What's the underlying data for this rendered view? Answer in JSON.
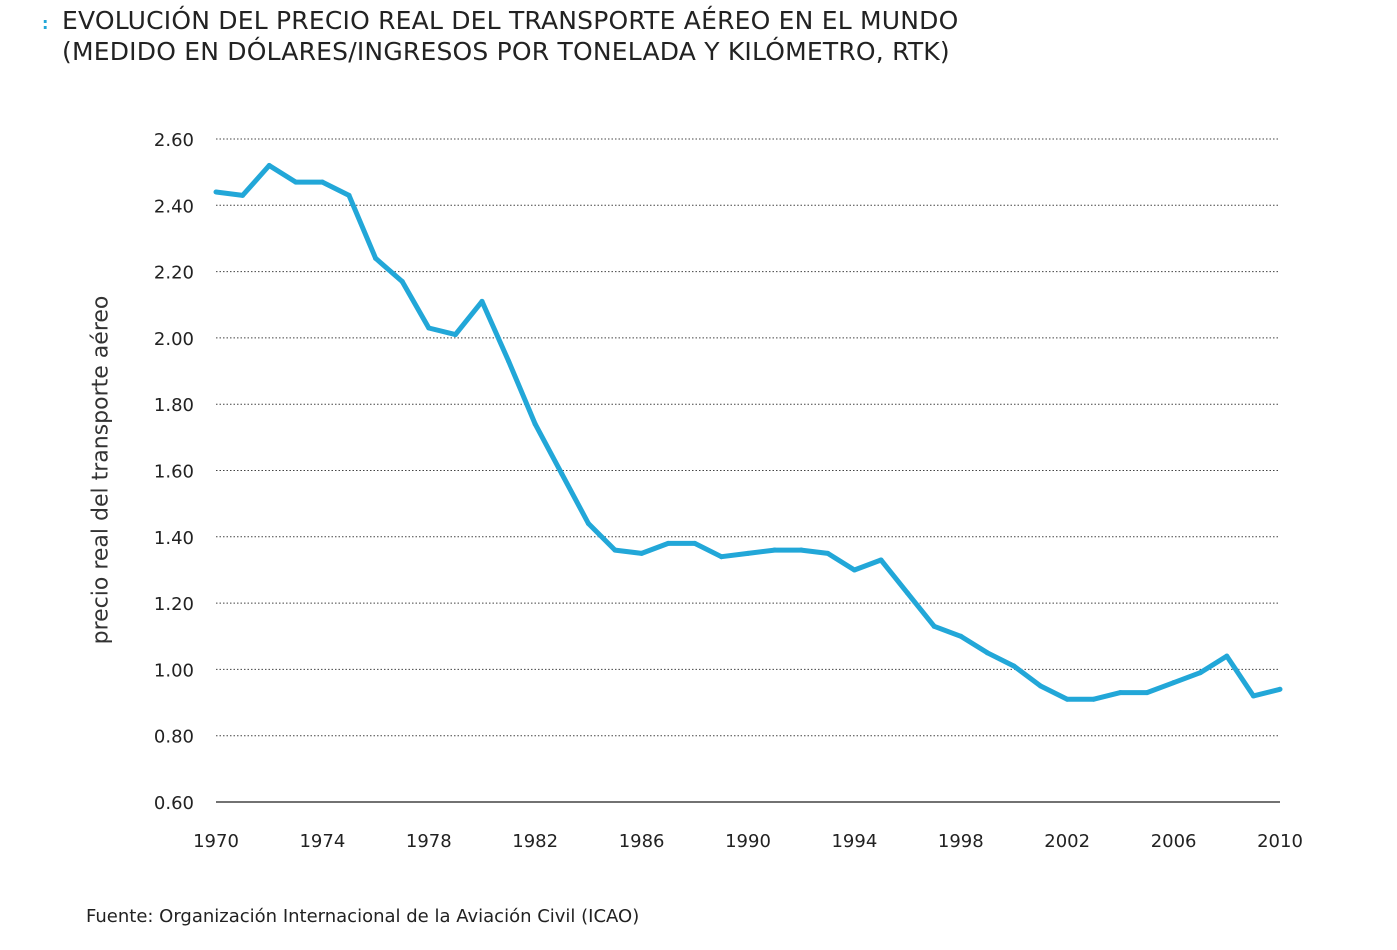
{
  "title": {
    "marker": ":",
    "line1": "EVOLUCIÓN DEL PRECIO REAL DEL TRANSPORTE AÉREO EN EL MUNDO",
    "line2": "(MEDIDO EN DÓLARES/INGRESOS POR TONELADA Y KILÓMETRO, RTK)"
  },
  "source": "Fuente: Organización Internacional de la Aviación Civil (ICAO)",
  "colors": {
    "line": "#22a7d8",
    "grid": "#444444",
    "accent": "#22a7d8"
  },
  "chart_data": {
    "type": "line",
    "title": "EVOLUCIÓN DEL PRECIO REAL DEL TRANSPORTE AÉREO EN EL MUNDO (MEDIDO EN DÓLARES/INGRESOS POR TONELADA Y KILÓMETRO, RTK)",
    "xlabel": "",
    "ylabel": "precio real del transporte aéreo",
    "ylim": [
      0.6,
      2.6
    ],
    "xlim": [
      1970,
      2010
    ],
    "y_ticks": [
      "2.60",
      "2.40",
      "2.20",
      "2.00",
      "1.80",
      "1.60",
      "1.40",
      "1.20",
      "1.00",
      "0.80",
      "0.60"
    ],
    "x_ticks": [
      "1970",
      "1974",
      "1978",
      "1982",
      "1986",
      "1990",
      "1994",
      "1998",
      "2002",
      "2006",
      "2010"
    ],
    "grid": true,
    "series": [
      {
        "name": "precio real",
        "x": [
          1970,
          1971,
          1972,
          1973,
          1974,
          1975,
          1976,
          1977,
          1978,
          1979,
          1980,
          1981,
          1982,
          1983,
          1984,
          1985,
          1986,
          1987,
          1988,
          1989,
          1990,
          1991,
          1992,
          1993,
          1994,
          1995,
          1996,
          1997,
          1998,
          1999,
          2000,
          2001,
          2002,
          2003,
          2004,
          2005,
          2006,
          2007,
          2008,
          2009,
          2010
        ],
        "values": [
          2.44,
          2.43,
          2.52,
          2.47,
          2.47,
          2.43,
          2.24,
          2.17,
          2.03,
          2.01,
          2.11,
          1.93,
          1.74,
          1.59,
          1.44,
          1.36,
          1.35,
          1.38,
          1.38,
          1.34,
          1.35,
          1.36,
          1.36,
          1.35,
          1.3,
          1.33,
          1.23,
          1.13,
          1.1,
          1.05,
          1.01,
          0.95,
          0.91,
          0.91,
          0.93,
          0.93,
          0.96,
          0.99,
          1.04,
          0.92,
          0.94
        ]
      }
    ]
  }
}
